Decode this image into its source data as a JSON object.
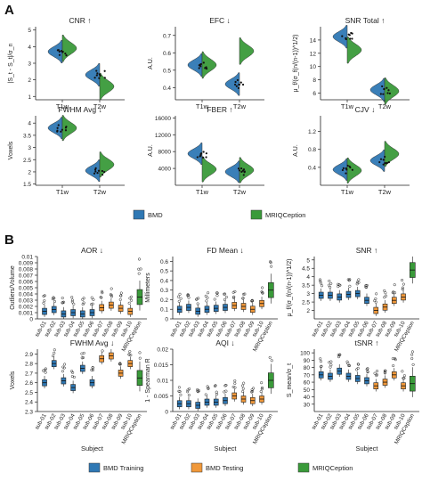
{
  "figure": {
    "panel_a_label": "A",
    "panel_b_label": "B"
  },
  "colors": {
    "blue": "#2f78b4",
    "green": "#3a9a3a",
    "orange": "#f0983a",
    "dark": "#1b1b1b"
  },
  "legends": {
    "a": [
      {
        "name": "BMD",
        "color": "#2f78b4"
      },
      {
        "name": "MRIQCeption",
        "color": "#3a9a3a"
      }
    ],
    "b": [
      {
        "name": "BMD Training",
        "color": "#2f78b4"
      },
      {
        "name": "BMD Testing",
        "color": "#f0983a"
      },
      {
        "name": "MRIQCeption",
        "color": "#3a9a3a"
      }
    ]
  },
  "chart_data": [
    {
      "type": "violin",
      "title": "CNR ↑",
      "ylabel": "|S_t - S_t|/σ_n",
      "categories": [
        "T1w",
        "T2w"
      ],
      "ylim": [
        0.8,
        5.2
      ],
      "yticks": [
        1,
        2,
        3,
        4,
        5
      ],
      "series": [
        {
          "name": "BMD",
          "medians": [
            3.7,
            2.3
          ]
        },
        {
          "name": "MRIQCeption",
          "medians": [
            3.9,
            1.6
          ]
        }
      ]
    },
    {
      "type": "violin",
      "title": "EFC ↓",
      "ylabel": "A.U.",
      "categories": [
        "T1w",
        "T2w"
      ],
      "ylim": [
        0.33,
        0.75
      ],
      "yticks": [
        0.4,
        0.5,
        0.6,
        0.7
      ],
      "series": [
        {
          "name": "BMD",
          "medians": [
            0.53,
            0.42
          ]
        },
        {
          "name": "MRIQCeption",
          "medians": [
            0.53,
            0.61
          ]
        }
      ]
    },
    {
      "type": "violin",
      "title": "SNR Total ↑",
      "ylabel": "μ_f/(σ_f(n/(n-1))^1/2)",
      "categories": [
        "T1w",
        "T2w"
      ],
      "ylim": [
        5,
        16
      ],
      "yticks": [
        6,
        8,
        10,
        12,
        14
      ],
      "series": [
        {
          "name": "BMD",
          "medians": [
            14.5,
            6.5
          ]
        },
        {
          "name": "MRIQCeption",
          "medians": [
            12.5,
            6.3
          ]
        }
      ]
    },
    {
      "type": "violin",
      "title": "FWHM Avg ↓",
      "ylabel": "Voxels",
      "categories": [
        "T1w",
        "T2w"
      ],
      "ylim": [
        1.45,
        4.3
      ],
      "yticks": [
        1.5,
        2.0,
        2.5,
        3.0,
        3.5,
        4.0
      ],
      "series": [
        {
          "name": "BMD",
          "medians": [
            3.8,
            2.05
          ]
        },
        {
          "name": "MRIQCeption",
          "medians": [
            3.8,
            2.3
          ]
        }
      ]
    },
    {
      "type": "violin",
      "title": "FBER ↑",
      "ylabel": "A.U.",
      "categories": [
        "T1w",
        "T2w"
      ],
      "ylim": [
        0,
        16500
      ],
      "yticks": [
        4000,
        8000,
        12000,
        16000
      ],
      "series": [
        {
          "name": "BMD",
          "medians": [
            7500,
            3200
          ]
        },
        {
          "name": "MRIQCeption",
          "medians": [
            3800,
            3600
          ]
        }
      ]
    },
    {
      "type": "violin",
      "title": "CJV ↓",
      "ylabel": "A.U.",
      "categories": [
        "T1w",
        "T2w"
      ],
      "ylim": [
        0,
        1.55
      ],
      "yticks": [
        0.4,
        0.8,
        1.2
      ],
      "series": [
        {
          "name": "BMD",
          "medians": [
            0.35,
            0.55
          ]
        },
        {
          "name": "MRIQCeption",
          "medians": [
            0.33,
            0.7
          ]
        }
      ]
    },
    {
      "type": "box",
      "title": "AOR ↓",
      "ylabel": "Outliers/Volume",
      "xlabel": "",
      "categories": [
        "sub-01",
        "sub-02",
        "sub-03",
        "sub-04",
        "sub-05",
        "sub-06",
        "sub-07",
        "sub-08",
        "sub-09",
        "sub-10",
        "MRIQCeption"
      ],
      "ylim": [
        0,
        0.01
      ],
      "yticks": [
        0,
        0.001,
        0.002,
        0.003,
        0.004,
        0.005,
        0.006,
        0.007,
        0.008,
        0.009,
        0.01
      ],
      "ytick_labels": [
        "0",
        "0.001",
        "0.002",
        "0.003",
        "0.004",
        "0.005",
        "0.006",
        "0.007",
        "0.008",
        "0.009",
        "0.01"
      ],
      "medians": [
        0.0012,
        0.0015,
        0.0008,
        0.001,
        0.0008,
        0.001,
        0.0018,
        0.0022,
        0.0017,
        0.0012,
        0.0035
      ]
    },
    {
      "type": "box",
      "title": "FD Mean ↓",
      "ylabel": "Millimeters",
      "xlabel": "",
      "categories": [
        "sub-01",
        "sub-02",
        "sub-03",
        "sub-04",
        "sub-05",
        "sub-06",
        "sub-07",
        "sub-08",
        "sub-09",
        "sub-10",
        "MRIQCeption"
      ],
      "ylim": [
        0,
        0.65
      ],
      "yticks": [
        0,
        0.1,
        0.2,
        0.3,
        0.4,
        0.5,
        0.6
      ],
      "ytick_labels": [
        "0",
        "0.1",
        "0.2",
        "0.3",
        "0.4",
        "0.5",
        "0.6"
      ],
      "medians": [
        0.1,
        0.12,
        0.08,
        0.1,
        0.11,
        0.12,
        0.14,
        0.13,
        0.1,
        0.16,
        0.3
      ]
    },
    {
      "type": "box",
      "title": "SNR ↑",
      "ylabel": "μ_f/(σ_f(n/(n-1))^1/2)",
      "xlabel": "",
      "categories": [
        "sub-01",
        "sub-02",
        "sub-03",
        "sub-04",
        "sub-05",
        "sub-06",
        "sub-07",
        "sub-08",
        "sub-09",
        "sub-10",
        "MRIQCeption"
      ],
      "ylim": [
        1.5,
        5.2
      ],
      "yticks": [
        2,
        2.5,
        3,
        3.5,
        4,
        4.5,
        5
      ],
      "ytick_labels": [
        "2",
        "2.5",
        "3",
        "3.5",
        "4",
        "4.5",
        "5"
      ],
      "medians": [
        2.9,
        2.9,
        2.8,
        2.95,
        3.0,
        2.6,
        2.0,
        2.2,
        2.6,
        2.8,
        4.4
      ]
    },
    {
      "type": "box",
      "title": "FWHM Avg ↓",
      "ylabel": "Voxels",
      "xlabel": "Subject",
      "categories": [
        "sub-01",
        "sub-02",
        "sub-03",
        "sub-04",
        "sub-05",
        "sub-06",
        "sub-07",
        "sub-08",
        "sub-09",
        "sub-10",
        "MRIQCeption"
      ],
      "ylim": [
        2.3,
        2.95
      ],
      "yticks": [
        2.3,
        2.4,
        2.5,
        2.6,
        2.7,
        2.8,
        2.9
      ],
      "ytick_labels": [
        "2.3",
        "2.4",
        "2.5",
        "2.6",
        "2.7",
        "2.8",
        "2.9"
      ],
      "medians": [
        2.6,
        2.8,
        2.62,
        2.55,
        2.75,
        2.6,
        2.85,
        2.88,
        2.7,
        2.8,
        2.65
      ]
    },
    {
      "type": "box",
      "title": "AQI ↓",
      "ylabel": "1 - Spearman R",
      "xlabel": "Subject",
      "categories": [
        "sub-01",
        "sub-02",
        "sub-03",
        "sub-04",
        "sub-05",
        "sub-06",
        "sub-07",
        "sub-08",
        "sub-09",
        "sub-10",
        "MRIQCeption"
      ],
      "ylim": [
        0,
        0.02
      ],
      "yticks": [
        0,
        0.005,
        0.01,
        0.015,
        0.02
      ],
      "ytick_labels": [
        "0",
        "0.005",
        "0.01",
        "0.015",
        "0.02"
      ],
      "medians": [
        0.0025,
        0.0025,
        0.002,
        0.003,
        0.003,
        0.0035,
        0.005,
        0.004,
        0.0035,
        0.004,
        0.01
      ]
    },
    {
      "type": "box",
      "title": "tSNR ↑",
      "ylabel": "S_mean/σ_t",
      "xlabel": "Subject",
      "categories": [
        "sub-01",
        "sub-02",
        "sub-03",
        "sub-04",
        "sub-05",
        "sub-06",
        "sub-07",
        "sub-08",
        "sub-09",
        "sub-10",
        "MRIQCeption"
      ],
      "ylim": [
        20,
        105
      ],
      "yticks": [
        30,
        40,
        50,
        60,
        70,
        80,
        90,
        100
      ],
      "ytick_labels": [
        "30",
        "40",
        "50",
        "60",
        "70",
        "80",
        "90",
        "100"
      ],
      "medians": [
        70,
        68,
        75,
        68,
        65,
        62,
        55,
        60,
        70,
        55,
        58
      ]
    }
  ]
}
